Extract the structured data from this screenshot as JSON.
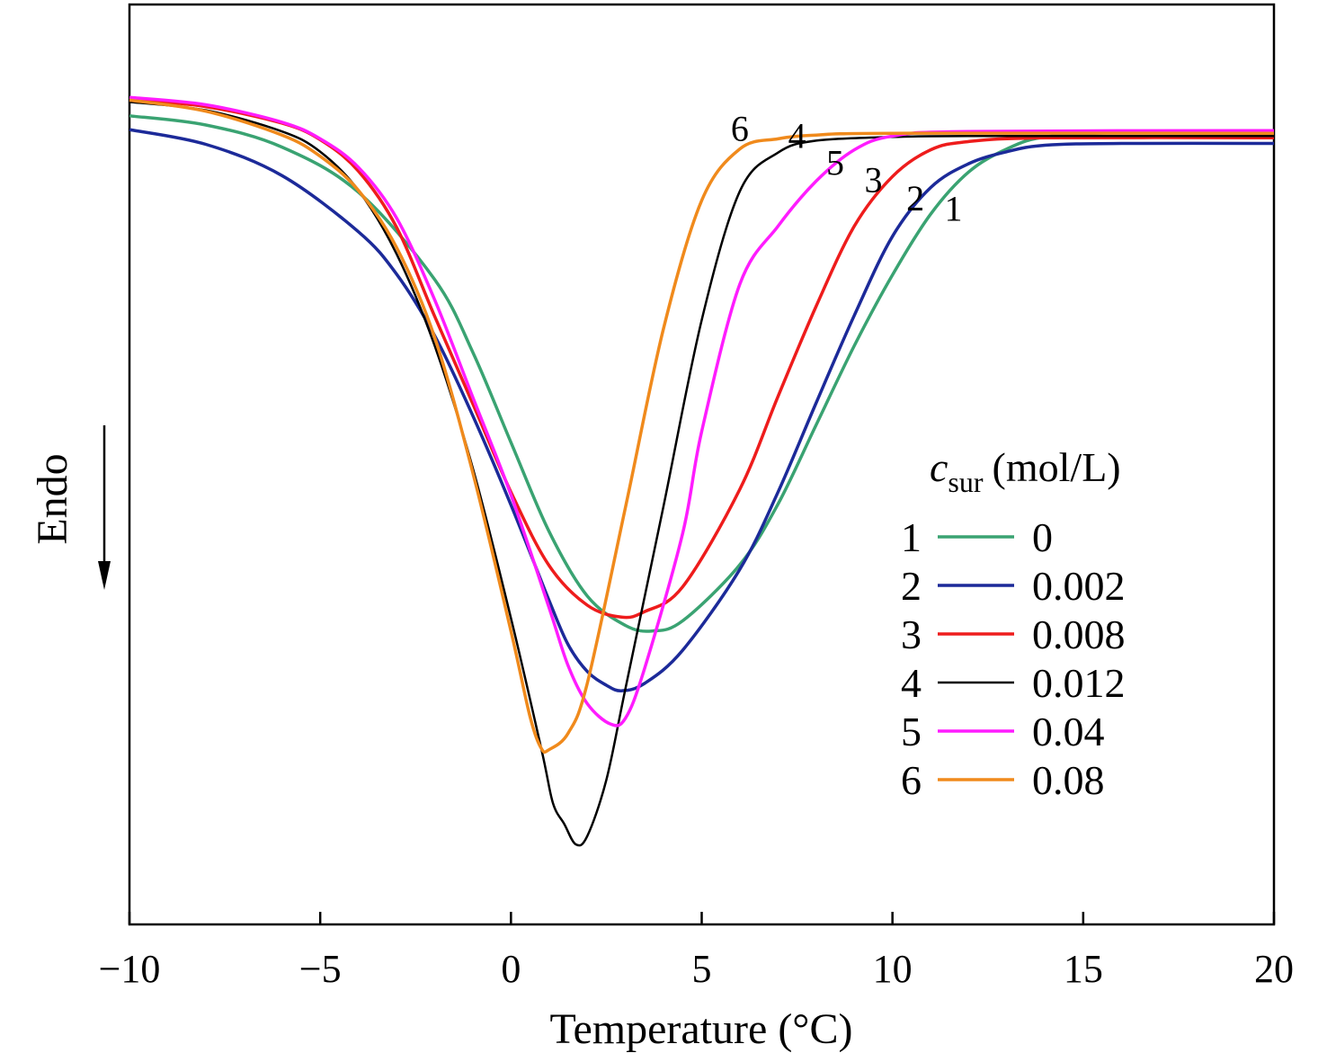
{
  "chart_data": {
    "type": "line",
    "xlabel": "Temperature (°C)",
    "ylabel": "Endo",
    "xlim": [
      -10,
      20
    ],
    "ylim": [
      0,
      100
    ],
    "x_ticks": [
      {
        "value": -10,
        "label": "−10"
      },
      {
        "value": -5,
        "label": "−5"
      },
      {
        "value": 0,
        "label": "0"
      },
      {
        "value": 5,
        "label": "5"
      },
      {
        "value": 10,
        "label": "10"
      },
      {
        "value": 15,
        "label": "15"
      },
      {
        "value": 20,
        "label": "20"
      }
    ],
    "legend": {
      "title_main": "c",
      "title_sub": "sur",
      "title_unit": "(mol/L)",
      "placement": "right"
    },
    "series": [
      {
        "id": "1",
        "value_label": "0",
        "color": "#3aa372",
        "points": [
          [
            -10,
            87.9
          ],
          [
            -8,
            86.9
          ],
          [
            -6,
            84.5
          ],
          [
            -4,
            79.6
          ],
          [
            -2,
            70.1
          ],
          [
            -1,
            62.2
          ],
          [
            0,
            52.4
          ],
          [
            1,
            42.7
          ],
          [
            2,
            35.7
          ],
          [
            3,
            32.5
          ],
          [
            3.7,
            31.9
          ],
          [
            4.5,
            33.0
          ],
          [
            6,
            39.1
          ],
          [
            7,
            45.7
          ],
          [
            8,
            54.3
          ],
          [
            9,
            62.9
          ],
          [
            10,
            70.6
          ],
          [
            11,
            77.2
          ],
          [
            12,
            81.8
          ],
          [
            13,
            84.3
          ],
          [
            14,
            85.6
          ],
          [
            16,
            86.1
          ],
          [
            20,
            86.3
          ]
        ],
        "label_at": [
          11.6,
          76.5
        ]
      },
      {
        "id": "2",
        "value_label": "0.002",
        "color": "#1c2a99",
        "points": [
          [
            -10,
            86.4
          ],
          [
            -8,
            84.8
          ],
          [
            -6,
            81.4
          ],
          [
            -4,
            75.3
          ],
          [
            -3,
            70.7
          ],
          [
            -2,
            64.0
          ],
          [
            -1,
            55.3
          ],
          [
            0,
            45.6
          ],
          [
            1,
            35.2
          ],
          [
            1.5,
            30.4
          ],
          [
            2,
            27.5
          ],
          [
            2.5,
            26.0
          ],
          [
            2.9,
            25.4
          ],
          [
            3.5,
            26.2
          ],
          [
            4.5,
            29.8
          ],
          [
            6,
            38.6
          ],
          [
            7,
            47.0
          ],
          [
            8,
            56.7
          ],
          [
            9,
            66.2
          ],
          [
            10,
            74.8
          ],
          [
            11,
            80.1
          ],
          [
            12,
            82.7
          ],
          [
            13,
            84.0
          ],
          [
            14,
            84.7
          ],
          [
            16,
            84.9
          ],
          [
            20,
            84.9
          ]
        ],
        "label_at": [
          10.6,
          77.6
        ]
      },
      {
        "id": "3",
        "value_label": "0.008",
        "color": "#ee1c1c",
        "points": [
          [
            -10,
            89.7
          ],
          [
            -8,
            88.9
          ],
          [
            -6,
            87.1
          ],
          [
            -5,
            85.3
          ],
          [
            -4,
            81.9
          ],
          [
            -3,
            75.8
          ],
          [
            -2,
            66.1
          ],
          [
            -1,
            56.6
          ],
          [
            0,
            47.0
          ],
          [
            1,
            39.0
          ],
          [
            2,
            34.7
          ],
          [
            2.9,
            33.4
          ],
          [
            3.5,
            34.0
          ],
          [
            4.5,
            36.7
          ],
          [
            6,
            47.3
          ],
          [
            7,
            57.4
          ],
          [
            8,
            67.2
          ],
          [
            9,
            75.9
          ],
          [
            10,
            81.3
          ],
          [
            11,
            84.2
          ],
          [
            12,
            85.1
          ],
          [
            14,
            85.5
          ],
          [
            20,
            85.5
          ]
        ],
        "label_at": [
          9.5,
          79.6
        ]
      },
      {
        "id": "4",
        "value_label": "0.012",
        "color": "#000000",
        "points": [
          [
            -10,
            89.4
          ],
          [
            -8,
            88.5
          ],
          [
            -6,
            86.2
          ],
          [
            -5,
            84.0
          ],
          [
            -4,
            79.8
          ],
          [
            -3,
            72.9
          ],
          [
            -2,
            62.9
          ],
          [
            -1,
            49.6
          ],
          [
            0,
            33.3
          ],
          [
            0.8,
            19.0
          ],
          [
            1.1,
            13.2
          ],
          [
            1.4,
            10.9
          ],
          [
            1.7,
            8.7
          ],
          [
            2.0,
            9.6
          ],
          [
            2.5,
            15.7
          ],
          [
            3.0,
            25.6
          ],
          [
            4,
            45.5
          ],
          [
            5,
            65.7
          ],
          [
            6,
            79.7
          ],
          [
            7,
            83.9
          ],
          [
            8,
            85.2
          ],
          [
            10,
            85.6
          ],
          [
            12,
            85.7
          ],
          [
            20,
            85.7
          ]
        ],
        "label_at": [
          7.5,
          84.4
        ]
      },
      {
        "id": "5",
        "value_label": "0.04",
        "color": "#ff1cff",
        "points": [
          [
            -10,
            89.9
          ],
          [
            -8,
            89.1
          ],
          [
            -6,
            87.2
          ],
          [
            -5,
            85.4
          ],
          [
            -4,
            82.3
          ],
          [
            -3,
            76.8
          ],
          [
            -2,
            67.9
          ],
          [
            -1,
            57.3
          ],
          [
            0,
            46.7
          ],
          [
            1,
            34.4
          ],
          [
            1.5,
            28.1
          ],
          [
            2.0,
            24.0
          ],
          [
            2.6,
            21.8
          ],
          [
            3.0,
            22.4
          ],
          [
            3.5,
            27.8
          ],
          [
            4.5,
            42.5
          ],
          [
            5,
            53.6
          ],
          [
            6,
            69.6
          ],
          [
            7,
            75.9
          ],
          [
            8,
            80.8
          ],
          [
            9,
            84.2
          ],
          [
            10,
            85.7
          ],
          [
            12,
            86.2
          ],
          [
            20,
            86.3
          ]
        ],
        "label_at": [
          8.5,
          81.5
        ]
      },
      {
        "id": "6",
        "value_label": "0.08",
        "color": "#f08a1c",
        "points": [
          [
            -10,
            89.6
          ],
          [
            -8,
            88.4
          ],
          [
            -6,
            85.8
          ],
          [
            -5,
            83.5
          ],
          [
            -4,
            79.8
          ],
          [
            -3,
            73.6
          ],
          [
            -2,
            63.8
          ],
          [
            -1,
            49.1
          ],
          [
            0,
            31.9
          ],
          [
            0.5,
            22.6
          ],
          [
            0.8,
            19.1
          ],
          [
            1.0,
            19.0
          ],
          [
            1.5,
            20.8
          ],
          [
            2.0,
            26.2
          ],
          [
            3.0,
            45.3
          ],
          [
            4,
            64.8
          ],
          [
            5,
            78.7
          ],
          [
            6,
            84.3
          ],
          [
            7,
            85.4
          ],
          [
            8,
            85.8
          ],
          [
            10,
            86.0
          ],
          [
            20,
            86.0
          ]
        ],
        "label_at": [
          6.0,
          85.2
        ]
      }
    ]
  }
}
